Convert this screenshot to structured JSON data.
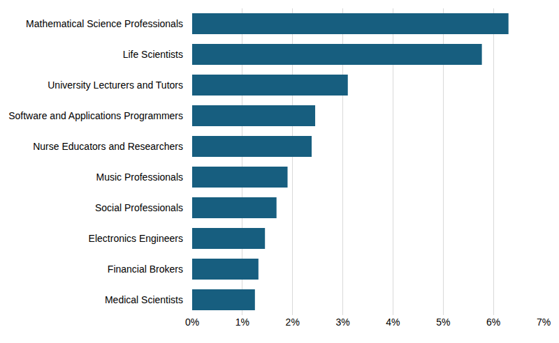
{
  "chart_data": {
    "type": "bar",
    "orientation": "horizontal",
    "categories": [
      "Mathematical Science Professionals",
      "Life Scientists",
      "University Lecturers and Tutors",
      "Software and Applications Programmers",
      "Nurse Educators and Researchers",
      "Music Professionals",
      "Social Professionals",
      "Electronics Engineers",
      "Financial Brokers",
      "Medical Scientists"
    ],
    "values": [
      6.3,
      5.77,
      3.1,
      2.45,
      2.38,
      1.9,
      1.68,
      1.45,
      1.32,
      1.25
    ],
    "color": "#175e7f",
    "xlim": [
      0,
      7
    ],
    "xticks": [
      {
        "value": 0,
        "label": "0%"
      },
      {
        "value": 1,
        "label": "1%"
      },
      {
        "value": 2,
        "label": "2%"
      },
      {
        "value": 3,
        "label": "3%"
      },
      {
        "value": 4,
        "label": "4%"
      },
      {
        "value": 5,
        "label": "5%"
      },
      {
        "value": 6,
        "label": "6%"
      },
      {
        "value": 7,
        "label": "7%"
      }
    ],
    "grid": true
  }
}
